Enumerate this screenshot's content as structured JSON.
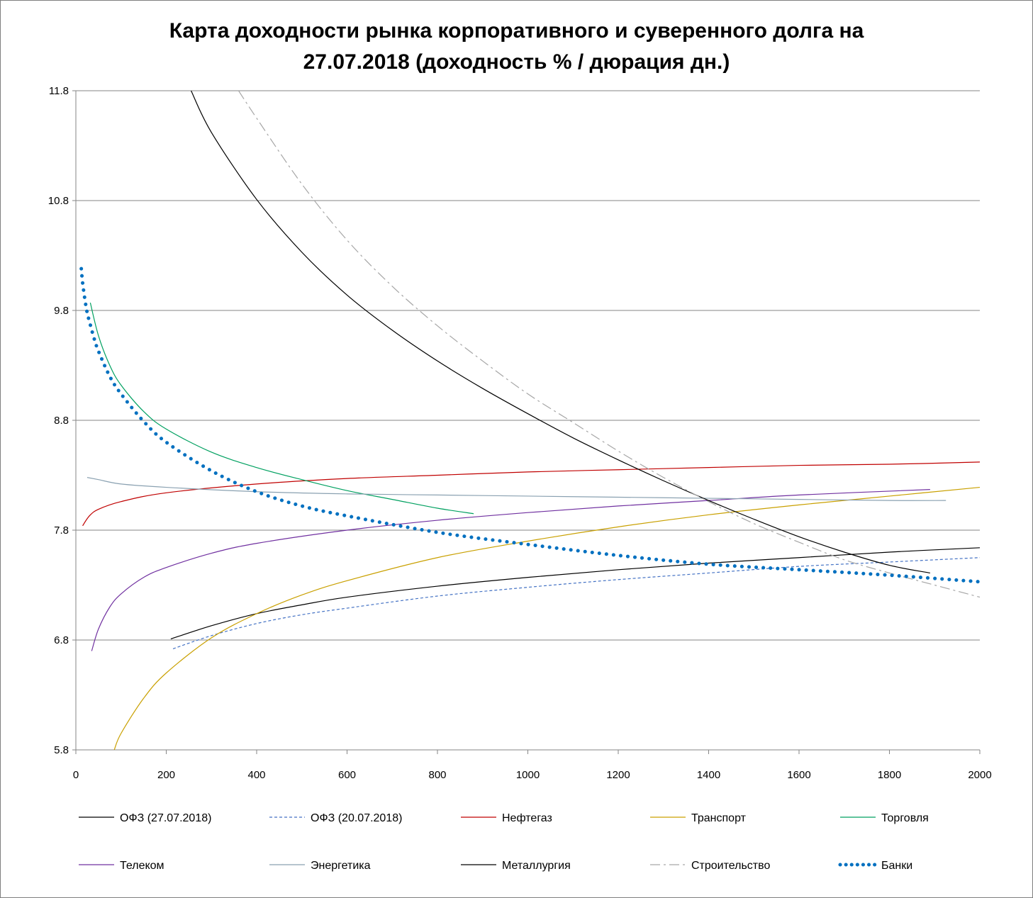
{
  "chart_data": {
    "type": "line",
    "title_line1": "Карта доходности рынка корпоративного и суверенного долга на",
    "title_line2": "27.07.2018 (доходность % / дюрация дн.)",
    "xlabel": "",
    "ylabel": "",
    "xlim": [
      0,
      2000
    ],
    "ylim": [
      5.8,
      11.8
    ],
    "x_ticks": [
      "0",
      "200",
      "400",
      "600",
      "800",
      "1000",
      "1200",
      "1400",
      "1600",
      "1800",
      "2000"
    ],
    "y_ticks": [
      "11.8",
      "10.8",
      "9.8",
      "8.8",
      "7.8",
      "6.8",
      "5.8"
    ],
    "grid": "horizontal",
    "legend_position": "bottom",
    "series": [
      {
        "name": "ОФЗ (27.07.2018)",
        "color": "#000000",
        "style": "solid",
        "width": 1.2,
        "x": [
          210,
          300,
          400,
          500,
          600,
          800,
          1000,
          1200,
          1400,
          1600,
          1800,
          2000
        ],
        "y": [
          6.81,
          6.93,
          7.04,
          7.12,
          7.19,
          7.29,
          7.37,
          7.44,
          7.5,
          7.55,
          7.6,
          7.64
        ]
      },
      {
        "name": "ОФЗ (20.07.2018)",
        "color": "#4472c4",
        "style": "dash",
        "width": 1.2,
        "x": [
          215,
          300,
          400,
          500,
          600,
          800,
          1000,
          1200,
          1400,
          1600,
          1800,
          2000
        ],
        "y": [
          6.72,
          6.84,
          6.95,
          7.03,
          7.09,
          7.2,
          7.28,
          7.35,
          7.41,
          7.47,
          7.51,
          7.55
        ]
      },
      {
        "name": "Нефтегаз",
        "color": "#c00000",
        "style": "solid",
        "width": 1.2,
        "x": [
          15,
          30,
          50,
          100,
          200,
          400,
          600,
          800,
          1000,
          1200,
          1400,
          1600,
          1800,
          2000
        ],
        "y": [
          7.84,
          7.93,
          7.99,
          8.06,
          8.14,
          8.22,
          8.27,
          8.3,
          8.33,
          8.35,
          8.37,
          8.39,
          8.4,
          8.42
        ]
      },
      {
        "name": "Транспорт",
        "color": "#c9a000",
        "style": "solid",
        "width": 1.2,
        "x": [
          85,
          100,
          150,
          200,
          300,
          400,
          500,
          600,
          800,
          1000,
          1200,
          1400,
          1600,
          1800,
          2000
        ],
        "y": [
          5.8,
          5.95,
          6.27,
          6.5,
          6.82,
          7.04,
          7.21,
          7.34,
          7.55,
          7.7,
          7.83,
          7.94,
          8.03,
          8.11,
          8.19
        ]
      },
      {
        "name": "Торговля",
        "color": "#00a060",
        "style": "solid",
        "width": 1.2,
        "x": [
          32,
          50,
          75,
          100,
          150,
          200,
          300,
          400,
          500,
          600,
          700,
          800,
          880
        ],
        "y": [
          9.87,
          9.57,
          9.3,
          9.12,
          8.88,
          8.72,
          8.51,
          8.37,
          8.26,
          8.16,
          8.08,
          8.0,
          7.95
        ]
      },
      {
        "name": "Телеком",
        "color": "#7030a0",
        "style": "solid",
        "width": 1.2,
        "x": [
          35,
          50,
          75,
          100,
          150,
          200,
          300,
          400,
          600,
          800,
          1000,
          1200,
          1400,
          1600,
          1890
        ],
        "y": [
          6.7,
          6.9,
          7.1,
          7.22,
          7.37,
          7.46,
          7.59,
          7.68,
          7.8,
          7.89,
          7.96,
          8.02,
          8.07,
          8.12,
          8.17
        ]
      },
      {
        "name": "Энергетика",
        "color": "#8aa1b1",
        "style": "solid",
        "width": 1.2,
        "x": [
          25,
          50,
          100,
          200,
          400,
          600,
          800,
          1000,
          1200,
          1400,
          1600,
          1800,
          1925
        ],
        "y": [
          8.28,
          8.26,
          8.22,
          8.19,
          8.15,
          8.13,
          8.12,
          8.11,
          8.1,
          8.09,
          8.08,
          8.07,
          8.07
        ]
      },
      {
        "name": "Металлургия",
        "color": "#000000",
        "style": "solid",
        "width": 1.2,
        "x": [
          255,
          300,
          400,
          500,
          600,
          700,
          800,
          900,
          1000,
          1100,
          1200,
          1300,
          1400,
          1500,
          1600,
          1700,
          1800,
          1890
        ],
        "y": [
          11.8,
          11.42,
          10.81,
          10.33,
          9.94,
          9.62,
          9.34,
          9.09,
          8.86,
          8.64,
          8.44,
          8.25,
          8.07,
          7.9,
          7.74,
          7.6,
          7.48,
          7.41
        ]
      },
      {
        "name": "Строительство",
        "color": "#a6a6a6",
        "style": "dashdot",
        "width": 1.2,
        "x": [
          360,
          400,
          500,
          600,
          700,
          800,
          900,
          1000,
          1100,
          1200,
          1300,
          1400,
          1500,
          1600,
          1700,
          1800,
          1900,
          2000
        ],
        "y": [
          11.8,
          11.55,
          10.95,
          10.44,
          10.02,
          9.66,
          9.34,
          9.04,
          8.78,
          8.52,
          8.28,
          8.06,
          7.86,
          7.69,
          7.53,
          7.41,
          7.3,
          7.19
        ]
      },
      {
        "name": "Банки",
        "color": "#0070c0",
        "style": "dot",
        "width": 5,
        "x": [
          12,
          15,
          20,
          25,
          30,
          40,
          50,
          75,
          100,
          150,
          200,
          300,
          400,
          500,
          600,
          800,
          1000,
          1200,
          1400,
          1600,
          1800,
          2000
        ],
        "y": [
          10.18,
          10.05,
          9.9,
          9.78,
          9.7,
          9.55,
          9.43,
          9.2,
          9.04,
          8.79,
          8.6,
          8.34,
          8.15,
          8.02,
          7.93,
          7.78,
          7.67,
          7.57,
          7.49,
          7.44,
          7.39,
          7.33
        ]
      }
    ]
  }
}
